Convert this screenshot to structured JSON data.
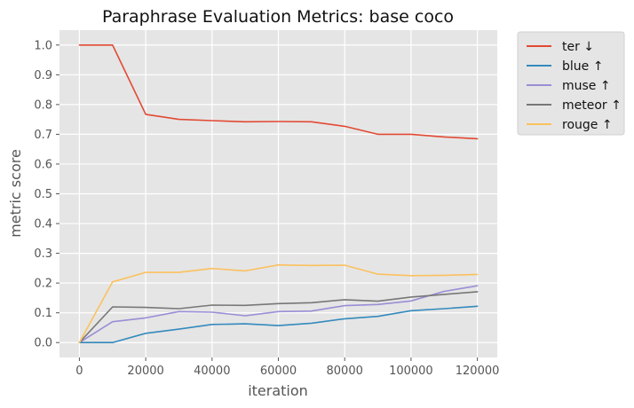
{
  "chart_data": {
    "type": "line",
    "title": "Paraphrase Evaluation Metrics: base coco",
    "xlabel": "iteration",
    "ylabel": "metric score",
    "x": [
      0,
      10000,
      20000,
      30000,
      40000,
      50000,
      60000,
      70000,
      80000,
      90000,
      100000,
      110000,
      120000
    ],
    "xlim": [
      -6000,
      126000
    ],
    "ylim": [
      -0.05,
      1.05
    ],
    "x_ticks": [
      0,
      20000,
      40000,
      60000,
      80000,
      100000,
      120000
    ],
    "y_ticks": [
      0.0,
      0.1,
      0.2,
      0.3,
      0.4,
      0.5,
      0.6,
      0.7,
      0.8,
      0.9,
      1.0
    ],
    "grid": true,
    "legend_position": "outside-right-top",
    "series": [
      {
        "name": "ter ↓",
        "color": "#E24A33",
        "values": [
          1.0,
          1.0,
          0.767,
          0.75,
          0.746,
          0.742,
          0.743,
          0.742,
          0.727,
          0.7,
          0.7,
          0.691,
          0.685
        ]
      },
      {
        "name": "blue ↑",
        "color": "#348ABD",
        "values": [
          0.0,
          0.0,
          0.031,
          0.045,
          0.061,
          0.063,
          0.057,
          0.065,
          0.08,
          0.088,
          0.107,
          0.114,
          0.122
        ]
      },
      {
        "name": "muse ↑",
        "color": "#988ED5",
        "values": [
          0.0,
          0.07,
          0.083,
          0.104,
          0.102,
          0.09,
          0.104,
          0.106,
          0.124,
          0.128,
          0.14,
          0.172,
          0.191
        ]
      },
      {
        "name": "meteor ↑",
        "color": "#777777",
        "values": [
          0.0,
          0.12,
          0.118,
          0.114,
          0.126,
          0.125,
          0.131,
          0.134,
          0.144,
          0.139,
          0.153,
          0.162,
          0.171
        ]
      },
      {
        "name": "rouge ↑",
        "color": "#FBC15E",
        "values": [
          0.0,
          0.204,
          0.236,
          0.236,
          0.249,
          0.241,
          0.261,
          0.259,
          0.26,
          0.23,
          0.225,
          0.226,
          0.229
        ]
      }
    ]
  }
}
